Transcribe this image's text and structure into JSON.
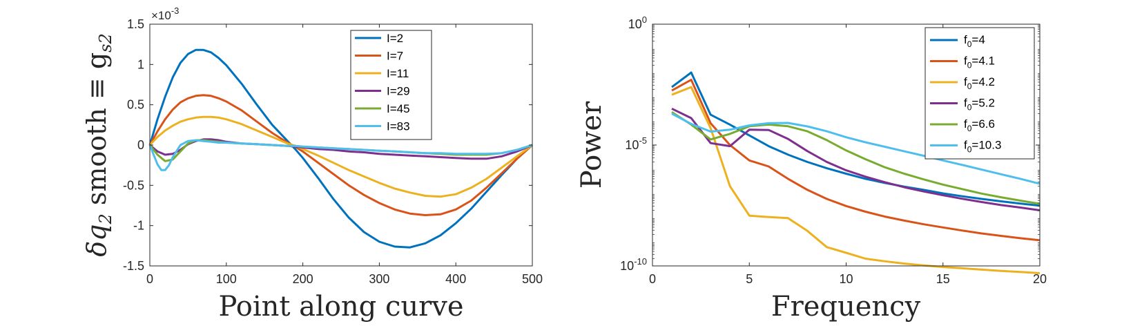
{
  "colors": [
    "#0072BD",
    "#D95319",
    "#EDB120",
    "#7E2F8E",
    "#77AC30",
    "#4DBEEE"
  ],
  "chart_data": [
    {
      "type": "line",
      "xlabel": "Point along curve",
      "ylabel_main": "δq",
      "ylabel_sub": "2",
      "ylabel_rest": " smooth ≡ g",
      "ylabel_sub2": "s2",
      "y_scale_label": "×10",
      "y_scale_exp": "-3",
      "xlim": [
        0,
        500
      ],
      "ylim": [
        -1.5,
        1.5
      ],
      "xticks": [
        0,
        100,
        200,
        300,
        400,
        500
      ],
      "xtick_labels": [
        "0",
        "100",
        "200",
        "300",
        "400",
        "500"
      ],
      "yticks": [
        -1.5,
        -1,
        -0.5,
        0,
        0.5,
        1,
        1.5
      ],
      "ytick_labels": [
        "-1.5",
        "-1",
        "-0.5",
        "0",
        "0.5",
        "1",
        "1.5"
      ],
      "legend_position": "top-right",
      "series": [
        {
          "name": "I=2",
          "x": [
            0,
            10,
            20,
            30,
            40,
            50,
            60,
            70,
            80,
            90,
            100,
            120,
            140,
            160,
            180,
            190,
            200,
            220,
            240,
            260,
            280,
            300,
            320,
            340,
            360,
            380,
            400,
            420,
            440,
            460,
            480,
            500
          ],
          "y": [
            0,
            0.32,
            0.6,
            0.84,
            1.02,
            1.13,
            1.18,
            1.18,
            1.15,
            1.08,
            0.99,
            0.76,
            0.5,
            0.25,
            0.05,
            -0.05,
            -0.16,
            -0.41,
            -0.67,
            -0.9,
            -1.08,
            -1.2,
            -1.26,
            -1.27,
            -1.22,
            -1.12,
            -0.97,
            -0.79,
            -0.58,
            -0.37,
            -0.17,
            0
          ]
        },
        {
          "name": "I=7",
          "x": [
            0,
            10,
            20,
            30,
            40,
            50,
            60,
            70,
            80,
            90,
            100,
            120,
            140,
            160,
            180,
            190,
            200,
            220,
            240,
            260,
            280,
            300,
            320,
            340,
            360,
            380,
            400,
            420,
            440,
            460,
            480,
            500
          ],
          "y": [
            0,
            0.17,
            0.32,
            0.44,
            0.53,
            0.58,
            0.61,
            0.62,
            0.61,
            0.58,
            0.54,
            0.43,
            0.29,
            0.15,
            0.03,
            -0.02,
            -0.08,
            -0.22,
            -0.36,
            -0.5,
            -0.62,
            -0.72,
            -0.8,
            -0.85,
            -0.87,
            -0.86,
            -0.8,
            -0.69,
            -0.53,
            -0.35,
            -0.17,
            0
          ]
        },
        {
          "name": "I=11",
          "x": [
            0,
            10,
            20,
            30,
            40,
            50,
            60,
            70,
            80,
            90,
            100,
            120,
            140,
            160,
            180,
            190,
            200,
            220,
            240,
            260,
            280,
            300,
            320,
            340,
            360,
            380,
            400,
            420,
            440,
            460,
            480,
            500
          ],
          "y": [
            0,
            0.1,
            0.18,
            0.24,
            0.29,
            0.32,
            0.34,
            0.35,
            0.35,
            0.34,
            0.32,
            0.26,
            0.18,
            0.1,
            0.02,
            -0.01,
            -0.05,
            -0.13,
            -0.22,
            -0.31,
            -0.39,
            -0.47,
            -0.54,
            -0.59,
            -0.63,
            -0.64,
            -0.61,
            -0.53,
            -0.42,
            -0.28,
            -0.14,
            0
          ]
        },
        {
          "name": "I=29",
          "x": [
            0,
            10,
            20,
            30,
            40,
            50,
            60,
            70,
            80,
            90,
            100,
            120,
            140,
            160,
            180,
            190,
            200,
            220,
            240,
            260,
            280,
            300,
            320,
            340,
            360,
            380,
            400,
            420,
            440,
            460,
            480,
            500
          ],
          "y": [
            0,
            -0.08,
            -0.12,
            -0.11,
            -0.06,
            0.01,
            0.05,
            0.07,
            0.07,
            0.06,
            0.04,
            0.02,
            0.01,
            0.0,
            -0.01,
            -0.02,
            -0.03,
            -0.05,
            -0.06,
            -0.08,
            -0.09,
            -0.11,
            -0.12,
            -0.13,
            -0.14,
            -0.15,
            -0.16,
            -0.17,
            -0.17,
            -0.14,
            -0.08,
            0
          ]
        },
        {
          "name": "I=45",
          "x": [
            0,
            10,
            20,
            30,
            40,
            50,
            60,
            70,
            80,
            90,
            100,
            120,
            140,
            160,
            180,
            190,
            200,
            220,
            240,
            260,
            280,
            300,
            320,
            340,
            360,
            380,
            400,
            420,
            440,
            460,
            480,
            500
          ],
          "y": [
            0,
            -0.12,
            -0.2,
            -0.18,
            -0.08,
            0.02,
            0.06,
            0.06,
            0.05,
            0.04,
            0.03,
            0.02,
            0.01,
            0.0,
            -0.01,
            -0.01,
            -0.02,
            -0.03,
            -0.04,
            -0.05,
            -0.06,
            -0.07,
            -0.08,
            -0.09,
            -0.1,
            -0.11,
            -0.12,
            -0.12,
            -0.12,
            -0.1,
            -0.06,
            0
          ]
        },
        {
          "name": "I=83",
          "x": [
            0,
            5,
            10,
            15,
            20,
            25,
            30,
            40,
            50,
            60,
            70,
            80,
            90,
            100,
            120,
            140,
            160,
            180,
            190,
            200,
            220,
            240,
            260,
            280,
            300,
            320,
            340,
            360,
            380,
            400,
            420,
            440,
            460,
            480,
            500
          ],
          "y": [
            0,
            -0.12,
            -0.24,
            -0.31,
            -0.31,
            -0.25,
            -0.15,
            0.0,
            0.05,
            0.06,
            0.05,
            0.04,
            0.03,
            0.03,
            0.02,
            0.01,
            0.0,
            -0.01,
            -0.01,
            -0.02,
            -0.03,
            -0.04,
            -0.05,
            -0.06,
            -0.07,
            -0.08,
            -0.09,
            -0.1,
            -0.1,
            -0.11,
            -0.11,
            -0.11,
            -0.1,
            -0.06,
            0
          ]
        }
      ]
    },
    {
      "type": "line",
      "xlabel": "Frequency",
      "ylabel": "Power",
      "yscale": "log",
      "xlim": [
        0,
        20
      ],
      "ylim": [
        1e-10,
        1
      ],
      "xticks": [
        0,
        5,
        10,
        15,
        20
      ],
      "xtick_labels": [
        "0",
        "5",
        "10",
        "15",
        "20"
      ],
      "ytick_base": "10",
      "yticks": [
        {
          "value": 1,
          "exp": "0"
        },
        {
          "value": 1e-05,
          "exp": "-5"
        },
        {
          "value": 1e-10,
          "exp": "-10"
        }
      ],
      "legend_position": "top-right",
      "legend_prefix": "f",
      "legend_sub": "0",
      "series": [
        {
          "name": "f0=4",
          "label_rest": "=4",
          "x": [
            1,
            2,
            3,
            4,
            5,
            6,
            7,
            8,
            9,
            10,
            11,
            12,
            13,
            14,
            15,
            16,
            17,
            18,
            19,
            20
          ],
          "y": [
            0.0025,
            0.01,
            0.00018,
            7e-05,
            2.5e-05,
            9e-06,
            4e-06,
            2e-06,
            1.1e-06,
            6.5e-07,
            4e-07,
            2.7e-07,
            1.9e-07,
            1.4e-07,
            1e-07,
            7.6e-08,
            5.9e-08,
            4.7e-08,
            3.8e-08,
            3.1e-08
          ]
        },
        {
          "name": "f0=4.1",
          "label_rest": "=4.1",
          "x": [
            1,
            2,
            3,
            4,
            5,
            6,
            7,
            8,
            9,
            10,
            11,
            12,
            13,
            14,
            15,
            16,
            17,
            18,
            19,
            20
          ],
          "y": [
            0.0018,
            0.005,
            8e-05,
            1e-05,
            2.3e-06,
            1.3e-06,
            4e-07,
            1.4e-07,
            5.9e-08,
            3e-08,
            1.75e-08,
            1.1e-08,
            7.5e-09,
            5.3e-09,
            3.9e-09,
            2.9e-09,
            2.2e-09,
            1.75e-09,
            1.4e-09,
            1.15e-09
          ]
        },
        {
          "name": "f0=4.2",
          "label_rest": "=4.2",
          "x": [
            1,
            2,
            3,
            4,
            5,
            6,
            7,
            8,
            9,
            10,
            11,
            12,
            13,
            14,
            15,
            16,
            17,
            18,
            19,
            20
          ],
          "y": [
            0.0012,
            0.0025,
            5e-05,
            2e-07,
            1.2e-08,
            1.05e-08,
            9.5e-09,
            2.8e-09,
            6e-10,
            3.5e-10,
            2e-10,
            1.55e-10,
            1.25e-10,
            1.05e-10,
            9e-11,
            8e-11,
            7e-11,
            6.2e-11,
            5.6e-11,
            5e-11
          ]
        },
        {
          "name": "f0=5.2",
          "label_rest": "=5.2",
          "x": [
            1,
            2,
            3,
            4,
            5,
            6,
            7,
            8,
            9,
            10,
            11,
            12,
            13,
            14,
            15,
            16,
            17,
            18,
            19,
            20
          ],
          "y": [
            0.00032,
            0.00013,
            1.2e-05,
            9e-06,
            4.3e-05,
            4.2e-05,
            1.8e-05,
            5.6e-06,
            2e-06,
            9e-07,
            4.9e-07,
            2.9e-07,
            1.8e-07,
            1.2e-07,
            8.4e-08,
            6e-08,
            4.4e-08,
            3.3e-08,
            2.6e-08,
            2e-08
          ]
        },
        {
          "name": "f0=6.6",
          "label_rest": "=6.6",
          "x": [
            1,
            2,
            3,
            4,
            5,
            6,
            7,
            8,
            9,
            10,
            11,
            12,
            13,
            14,
            15,
            16,
            17,
            18,
            19,
            20
          ],
          "y": [
            0.00023,
            7e-05,
            1.7e-05,
            2.9e-05,
            6e-05,
            7e-05,
            6e-05,
            3.7e-05,
            1.6e-05,
            6e-06,
            2.6e-06,
            1.2e-06,
            6.5e-07,
            3.8e-07,
            2.3e-07,
            1.5e-07,
            9.8e-08,
            6.9e-08,
            5e-08,
            3.7e-08
          ]
        },
        {
          "name": "f0=10.3",
          "label_rest": "=10.3",
          "x": [
            1,
            2,
            3,
            4,
            5,
            6,
            7,
            8,
            9,
            10,
            11,
            12,
            13,
            14,
            15,
            16,
            17,
            18,
            19,
            20
          ],
          "y": [
            0.0002,
            7.5e-05,
            3.6e-05,
            4.3e-05,
            6.5e-05,
            8e-05,
            8.2e-05,
            5.9e-05,
            3.7e-05,
            2.1e-05,
            1.3e-05,
            8.5e-06,
            5.5e-06,
            3.6e-06,
            2.3e-06,
            1.5e-06,
            9.6e-07,
            6.2e-07,
            4e-07,
            2.5e-07
          ]
        }
      ]
    }
  ]
}
